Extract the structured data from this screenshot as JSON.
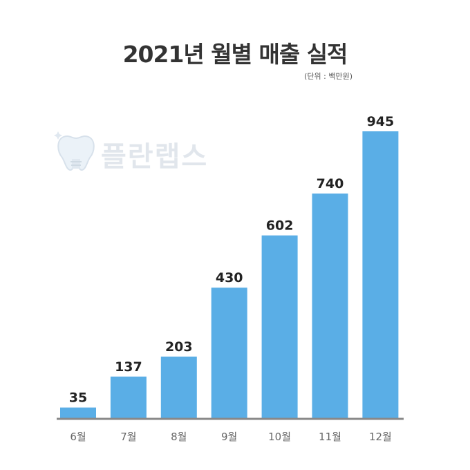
{
  "title": "2021년 월별 매출 실적",
  "unit_note": "(단위 : 백만원)",
  "watermark": "플란랩스",
  "colors": {
    "bar": "#5aaee6",
    "axis": "#888888",
    "value_label": "#222222",
    "tick_label": "#666666"
  },
  "chart_data": {
    "type": "bar",
    "categories": [
      "6월",
      "7월",
      "8월",
      "9월",
      "10월",
      "11월",
      "12월"
    ],
    "values": [
      35,
      137,
      203,
      430,
      602,
      740,
      945
    ],
    "title": "2021년 월별 매출 실적",
    "xlabel": "",
    "ylabel": "",
    "ylim": [
      0,
      945
    ],
    "grid": false,
    "legend": "none"
  }
}
